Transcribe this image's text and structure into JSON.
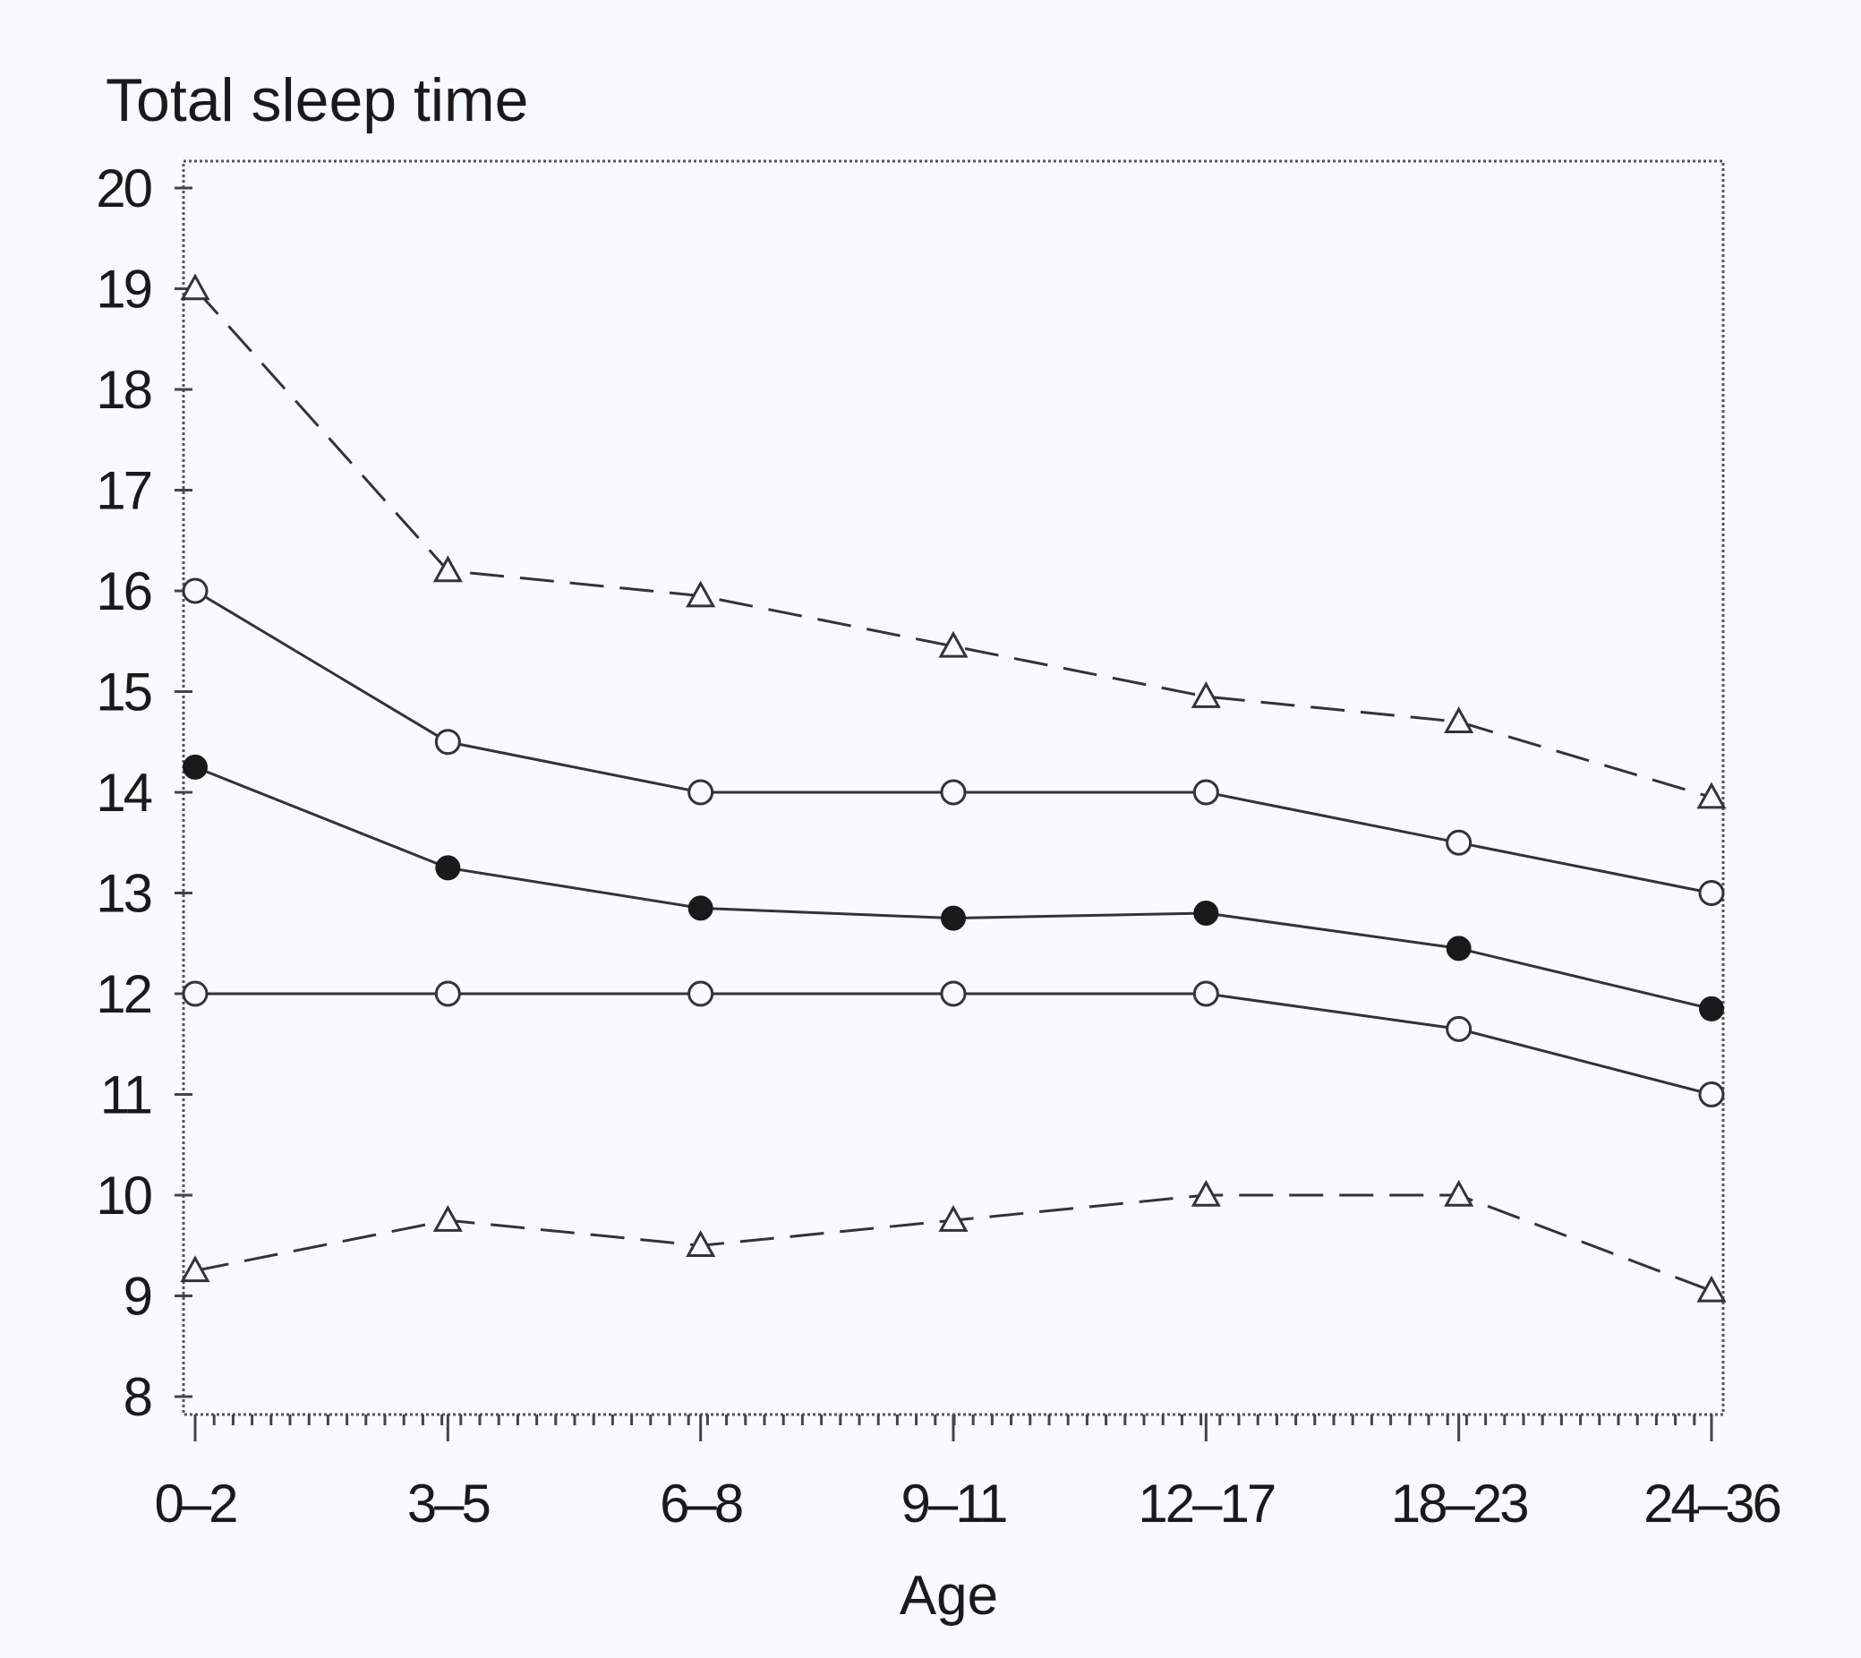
{
  "chart_data": {
    "type": "line",
    "title": "Total sleep time",
    "xlabel": "Age",
    "ylabel": "",
    "categories": [
      "0–2",
      "3–5",
      "6–8",
      "9–11",
      "12–17",
      "18–23",
      "24–36"
    ],
    "ylim": [
      8,
      20
    ],
    "yticks": [
      8,
      9,
      10,
      11,
      12,
      13,
      14,
      15,
      16,
      17,
      18,
      19,
      20
    ],
    "grid": false,
    "legend": "none",
    "series": [
      {
        "marker": "triangle-open",
        "linestyle": "dashed",
        "values": [
          19.0,
          16.2,
          15.95,
          15.45,
          14.95,
          14.7,
          13.95
        ]
      },
      {
        "marker": "circle-open",
        "linestyle": "solid",
        "values": [
          16.0,
          14.5,
          14.0,
          14.0,
          14.0,
          13.5,
          13.0
        ]
      },
      {
        "marker": "circle-filled",
        "linestyle": "solid",
        "values": [
          14.25,
          13.25,
          12.85,
          12.75,
          12.8,
          12.45,
          11.85
        ]
      },
      {
        "marker": "circle-open",
        "linestyle": "solid",
        "values": [
          12.0,
          12.0,
          12.0,
          12.0,
          12.0,
          11.65,
          11.0
        ]
      },
      {
        "marker": "triangle-open",
        "linestyle": "dashed",
        "values": [
          9.25,
          9.75,
          9.5,
          9.75,
          10.0,
          10.0,
          9.05
        ]
      }
    ]
  }
}
